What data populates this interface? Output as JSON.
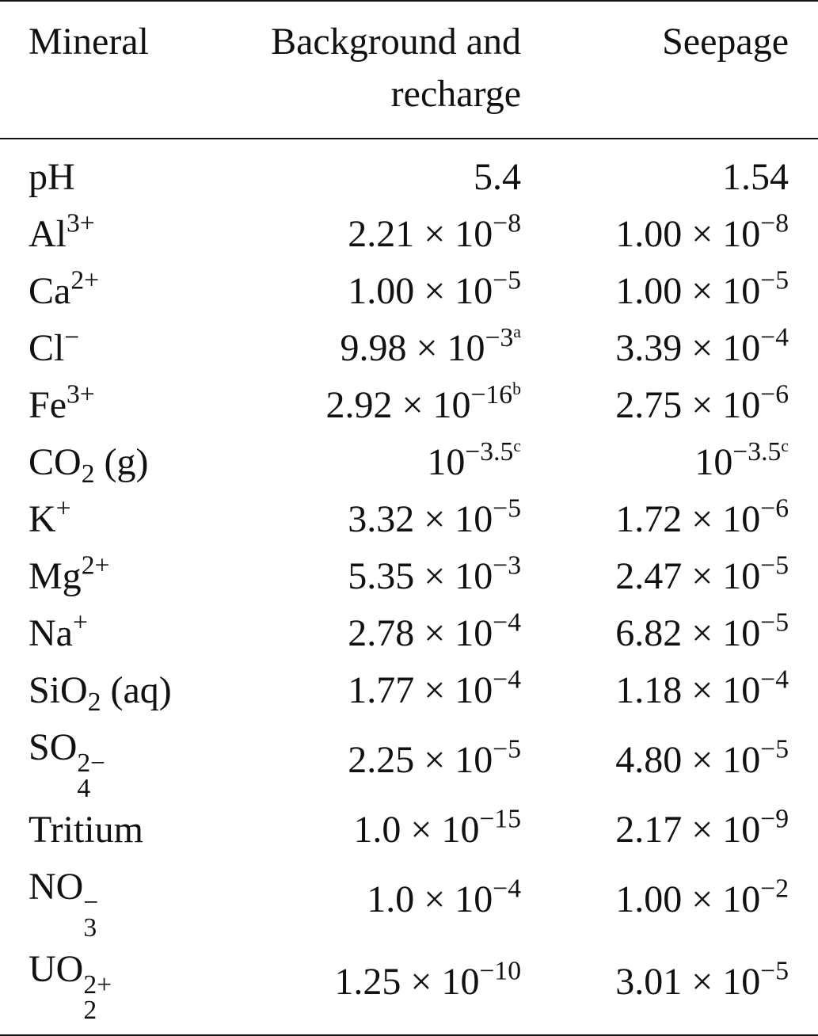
{
  "table": {
    "header": [
      "Mineral",
      "Background and recharge",
      "Seepage"
    ],
    "rows": [
      [
        [
          {
            "text": "pH"
          }
        ],
        [
          {
            "text": "5.4"
          }
        ],
        [
          {
            "text": "1.54"
          }
        ]
      ],
      [
        [
          {
            "text": "Al",
            "sup": "3+"
          }
        ],
        [
          {
            "text": "2.21 × 10",
            "sup": "−8"
          }
        ],
        [
          {
            "text": "1.00 × 10",
            "sup": "−8"
          }
        ]
      ],
      [
        [
          {
            "text": "Ca",
            "sup": "2+"
          }
        ],
        [
          {
            "text": "1.00 × 10",
            "sup": "−5"
          }
        ],
        [
          {
            "text": "1.00 × 10",
            "sup": "−5"
          }
        ]
      ],
      [
        [
          {
            "text": "Cl",
            "sup": "−"
          }
        ],
        [
          {
            "text": "9.98 × 10",
            "sup": "−3",
            "note": "a"
          }
        ],
        [
          {
            "text": "3.39 × 10",
            "sup": "−4"
          }
        ]
      ],
      [
        [
          {
            "text": "Fe",
            "sup": "3+"
          }
        ],
        [
          {
            "text": "2.92 × 10",
            "sup": "−16",
            "note": "b"
          }
        ],
        [
          {
            "text": "2.75 × 10",
            "sup": "−6"
          }
        ]
      ],
      [
        [
          {
            "text": "CO",
            "sub": "2"
          },
          {
            "text": " (g)"
          }
        ],
        [
          {
            "text": "10",
            "sup": "−3.5",
            "note": "c"
          }
        ],
        [
          {
            "text": "10",
            "sup": "−3.5",
            "note": "c"
          }
        ]
      ],
      [
        [
          {
            "text": "K",
            "sup": "+"
          }
        ],
        [
          {
            "text": "3.32 × 10",
            "sup": "−5"
          }
        ],
        [
          {
            "text": "1.72 × 10",
            "sup": "−6"
          }
        ]
      ],
      [
        [
          {
            "text": "Mg",
            "sup": "2+"
          }
        ],
        [
          {
            "text": "5.35 × 10",
            "sup": "−3"
          }
        ],
        [
          {
            "text": "2.47 × 10",
            "sup": "−5"
          }
        ]
      ],
      [
        [
          {
            "text": "Na",
            "sup": "+"
          }
        ],
        [
          {
            "text": "2.78 × 10",
            "sup": "−4"
          }
        ],
        [
          {
            "text": "6.82 × 10",
            "sup": "−5"
          }
        ]
      ],
      [
        [
          {
            "text": "SiO",
            "sub": "2"
          },
          {
            "text": " (aq)"
          }
        ],
        [
          {
            "text": "1.77 × 10",
            "sup": "−4"
          }
        ],
        [
          {
            "text": "1.18 × 10",
            "sup": "−4"
          }
        ]
      ],
      [
        [
          {
            "text": "SO",
            "sub": "4",
            "sup": "2−"
          }
        ],
        [
          {
            "text": "2.25 × 10",
            "sup": "−5"
          }
        ],
        [
          {
            "text": "4.80 × 10",
            "sup": "−5"
          }
        ]
      ],
      [
        [
          {
            "text": "Tritium"
          }
        ],
        [
          {
            "text": "1.0 × 10",
            "sup": "−15"
          }
        ],
        [
          {
            "text": "2.17 × 10",
            "sup": "−9"
          }
        ]
      ],
      [
        [
          {
            "text": "NO",
            "sub": "3",
            "sup": "−"
          }
        ],
        [
          {
            "text": "1.0 × 10",
            "sup": "−4"
          }
        ],
        [
          {
            "text": "1.00 × 10",
            "sup": "−2"
          }
        ]
      ],
      [
        [
          {
            "text": "UO",
            "sub": "2",
            "sup": "2+"
          }
        ],
        [
          {
            "text": "1.25 × 10",
            "sup": "−10"
          }
        ],
        [
          {
            "text": "3.01 × 10",
            "sup": "−5"
          }
        ]
      ]
    ]
  }
}
